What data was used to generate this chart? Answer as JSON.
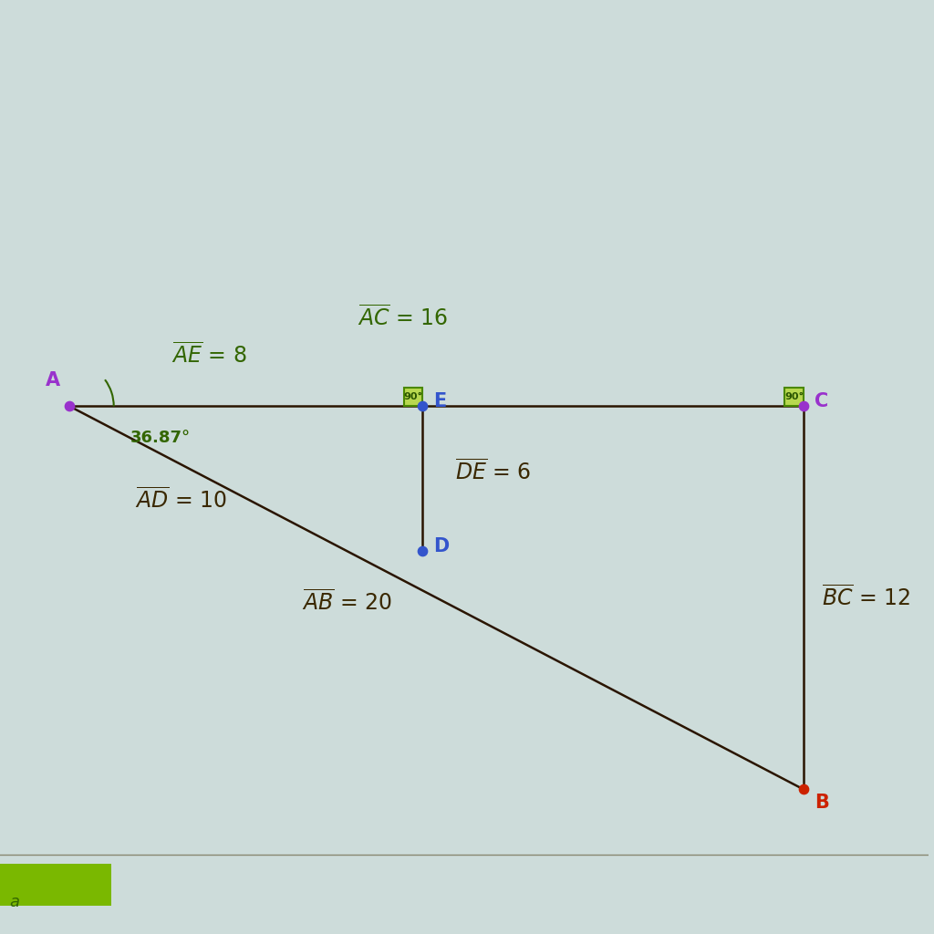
{
  "background_color": "#cddcda",
  "point_colors": {
    "A": "#9932CC",
    "B": "#CC2200",
    "C": "#9932CC",
    "D": "#3355CC",
    "E": "#3355CC"
  },
  "line_color": "#2a1500",
  "line_width": 1.8,
  "label_color_dark": "#3a2800",
  "label_color_green": "#336600",
  "label_fontsize": 17,
  "point_label_fontsize": 15,
  "angle_label": "36.87°",
  "angle_label_color": "#336600",
  "right_angle_fill": "#b8d850",
  "right_angle_edge": "#4a8800",
  "point_size": 55,
  "bottom_bar_color": "#5a8800",
  "bottom_bar_height": 0.045
}
